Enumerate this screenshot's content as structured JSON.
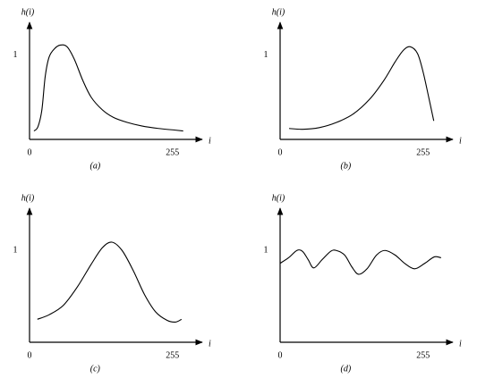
{
  "chart_data": [
    {
      "type": "line",
      "y_label": "h(i)",
      "x_label": "i",
      "caption": "(a)",
      "color": "#000000",
      "x": [
        8,
        15,
        22,
        28,
        35,
        45,
        55,
        67,
        80,
        95,
        110,
        130,
        150,
        175,
        200,
        230,
        260,
        274
      ],
      "values": [
        0.1,
        0.15,
        0.35,
        0.75,
        0.98,
        1.08,
        1.12,
        1.1,
        0.95,
        0.7,
        0.5,
        0.35,
        0.26,
        0.2,
        0.16,
        0.13,
        0.11,
        0.1
      ],
      "xlim": [
        0,
        308
      ],
      "ylim": [
        0,
        1.39
      ],
      "xticks": [
        0,
        255
      ],
      "yticks": [
        1
      ]
    },
    {
      "type": "line",
      "y_label": "h(i)",
      "x_label": "i",
      "caption": "(b)",
      "color": "#000000",
      "x": [
        16,
        40,
        70,
        100,
        130,
        160,
        185,
        205,
        220,
        232,
        245,
        255,
        265,
        274
      ],
      "values": [
        0.13,
        0.12,
        0.14,
        0.2,
        0.3,
        0.48,
        0.7,
        0.92,
        1.06,
        1.1,
        1.02,
        0.8,
        0.5,
        0.22
      ],
      "xlim": [
        0,
        308
      ],
      "ylim": [
        0,
        1.39
      ],
      "xticks": [
        0,
        255
      ],
      "yticks": [
        1
      ]
    },
    {
      "type": "line",
      "y_label": "h(i)",
      "x_label": "i",
      "caption": "(c)",
      "color": "#000000",
      "x": [
        14,
        35,
        60,
        85,
        110,
        130,
        147,
        165,
        185,
        205,
        225,
        245,
        260,
        271
      ],
      "values": [
        0.25,
        0.3,
        0.4,
        0.6,
        0.85,
        1.03,
        1.09,
        1.0,
        0.78,
        0.52,
        0.33,
        0.24,
        0.22,
        0.25
      ],
      "xlim": [
        0,
        308
      ],
      "ylim": [
        0,
        1.46
      ],
      "xticks": [
        0,
        255
      ],
      "yticks": [
        1
      ]
    },
    {
      "type": "line",
      "y_label": "h(i)",
      "x_label": "i",
      "caption": "(d)",
      "color": "#000000",
      "x": [
        0,
        15,
        30,
        40,
        50,
        60,
        75,
        90,
        100,
        115,
        128,
        140,
        155,
        172,
        187,
        205,
        222,
        240,
        258,
        275,
        287
      ],
      "values": [
        0.86,
        0.92,
        1.0,
        0.99,
        0.9,
        0.81,
        0.9,
        0.99,
        1.0,
        0.95,
        0.82,
        0.74,
        0.8,
        0.95,
        1.0,
        0.95,
        0.86,
        0.8,
        0.86,
        0.93,
        0.92
      ],
      "xlim": [
        0,
        308
      ],
      "ylim": [
        0,
        1.46
      ],
      "xticks": [
        0,
        255
      ],
      "yticks": [
        1
      ]
    }
  ]
}
